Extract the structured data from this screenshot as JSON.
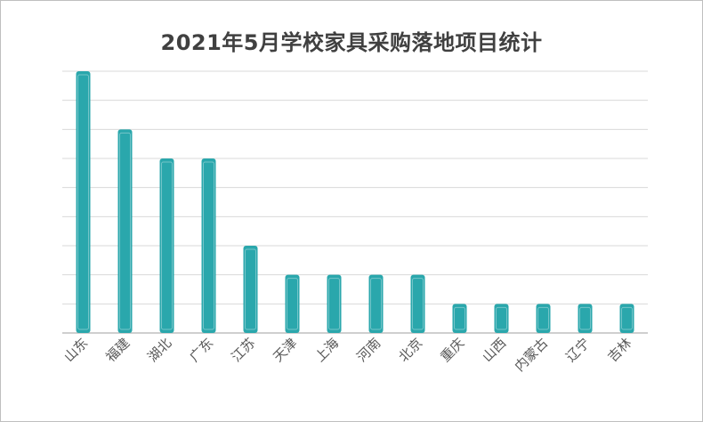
{
  "chart_data": {
    "type": "bar",
    "title": "2021年5月学校家具采购落地项目统计",
    "categories": [
      "山东",
      "福建",
      "湖北",
      "广东",
      "江苏",
      "天津",
      "上海",
      "河南",
      "北京",
      "重庆",
      "山西",
      "内蒙古",
      "辽宁",
      "吉林"
    ],
    "values": [
      9,
      7,
      6,
      6,
      3,
      2,
      2,
      2,
      2,
      1,
      1,
      1,
      1,
      1
    ],
    "ylim": [
      0,
      9
    ],
    "grid": true,
    "legend": "none",
    "colors": {
      "bar": "#2aa7ac",
      "grid": "#d9d9d9",
      "axis": "#bfbfbf"
    }
  }
}
